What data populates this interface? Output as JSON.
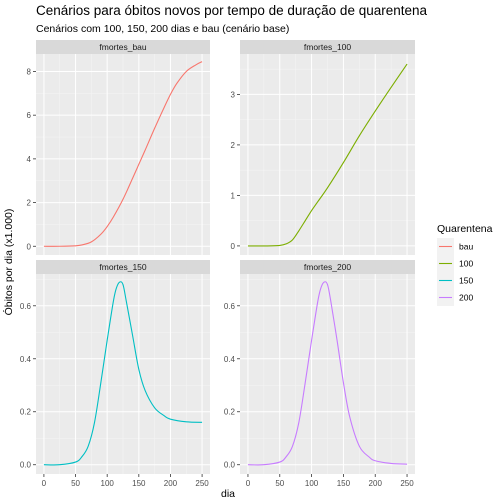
{
  "chart_data": {
    "type": "line",
    "title": "Cenários para óbitos novos por tempo de duração de quarentena",
    "subtitle": "Cenários com 100, 150, 200 dias e bau (cenário base)",
    "xlabel": "dia",
    "ylabel": "Óbitos por dia (x1.000)",
    "xlim": [
      0,
      250
    ],
    "x_ticks": [
      0,
      50,
      100,
      150,
      200,
      250
    ],
    "grid": true,
    "legend": {
      "title": "Quarentena",
      "position": "right",
      "entries": [
        {
          "label": "bau",
          "color": "#F8766D"
        },
        {
          "label": "100",
          "color": "#7CAE00"
        },
        {
          "label": "150",
          "color": "#00BFC4"
        },
        {
          "label": "200",
          "color": "#C77CFF"
        }
      ]
    },
    "panels": [
      {
        "strip": "fmortes_bau",
        "color": "#F8766D",
        "ylim": [
          -0.4,
          8.8
        ],
        "y_ticks": [
          0,
          2,
          4,
          6,
          8
        ],
        "x": [
          0,
          25,
          50,
          60,
          75,
          90,
          100,
          110,
          125,
          140,
          150,
          160,
          175,
          190,
          200,
          210,
          225,
          240,
          250
        ],
        "y": [
          0,
          0,
          0.02,
          0.06,
          0.2,
          0.55,
          0.9,
          1.35,
          2.15,
          3.1,
          3.75,
          4.4,
          5.4,
          6.35,
          6.95,
          7.45,
          8.0,
          8.3,
          8.45
        ]
      },
      {
        "strip": "fmortes_100",
        "color": "#7CAE00",
        "ylim": [
          -0.18,
          3.8
        ],
        "y_ticks": [
          0,
          1,
          2,
          3
        ],
        "x": [
          0,
          25,
          50,
          60,
          70,
          80,
          90,
          100,
          110,
          125,
          150,
          175,
          200,
          225,
          250
        ],
        "y": [
          0,
          0,
          0.01,
          0.04,
          0.12,
          0.3,
          0.5,
          0.7,
          0.88,
          1.15,
          1.65,
          2.18,
          2.67,
          3.14,
          3.6
        ]
      },
      {
        "strip": "fmortes_150",
        "color": "#00BFC4",
        "ylim": [
          -0.035,
          0.72
        ],
        "y_ticks": [
          0,
          0.2,
          0.4,
          0.6
        ],
        "x": [
          0,
          25,
          50,
          60,
          70,
          80,
          90,
          100,
          110,
          115,
          120,
          125,
          130,
          140,
          150,
          160,
          175,
          190,
          200,
          225,
          250
        ],
        "y": [
          0,
          0,
          0.01,
          0.03,
          0.07,
          0.16,
          0.31,
          0.47,
          0.62,
          0.67,
          0.69,
          0.68,
          0.62,
          0.49,
          0.36,
          0.28,
          0.215,
          0.185,
          0.172,
          0.162,
          0.16
        ]
      },
      {
        "strip": "fmortes_200",
        "color": "#C77CFF",
        "ylim": [
          -0.035,
          0.72
        ],
        "y_ticks": [
          0,
          0.2,
          0.4,
          0.6
        ],
        "x": [
          0,
          25,
          50,
          60,
          70,
          80,
          90,
          100,
          110,
          115,
          120,
          125,
          130,
          140,
          150,
          160,
          175,
          190,
          200,
          225,
          250
        ],
        "y": [
          0,
          0,
          0.01,
          0.03,
          0.07,
          0.16,
          0.31,
          0.47,
          0.62,
          0.67,
          0.69,
          0.68,
          0.62,
          0.47,
          0.31,
          0.18,
          0.07,
          0.03,
          0.015,
          0.005,
          0.002
        ]
      }
    ]
  },
  "labels": {
    "tick_0": "0",
    "tick_2": "2",
    "tick_4": "4",
    "tick_6": "6",
    "tick_8": "8",
    "tick_1": "1",
    "tick_3": "3",
    "tick_00": "0.0",
    "tick_02": "0.2",
    "tick_04": "0.4",
    "tick_06": "0.6",
    "xtick_0": "0",
    "xtick_50": "50",
    "xtick_100": "100",
    "xtick_150": "150",
    "xtick_200": "200",
    "xtick_250": "250"
  }
}
